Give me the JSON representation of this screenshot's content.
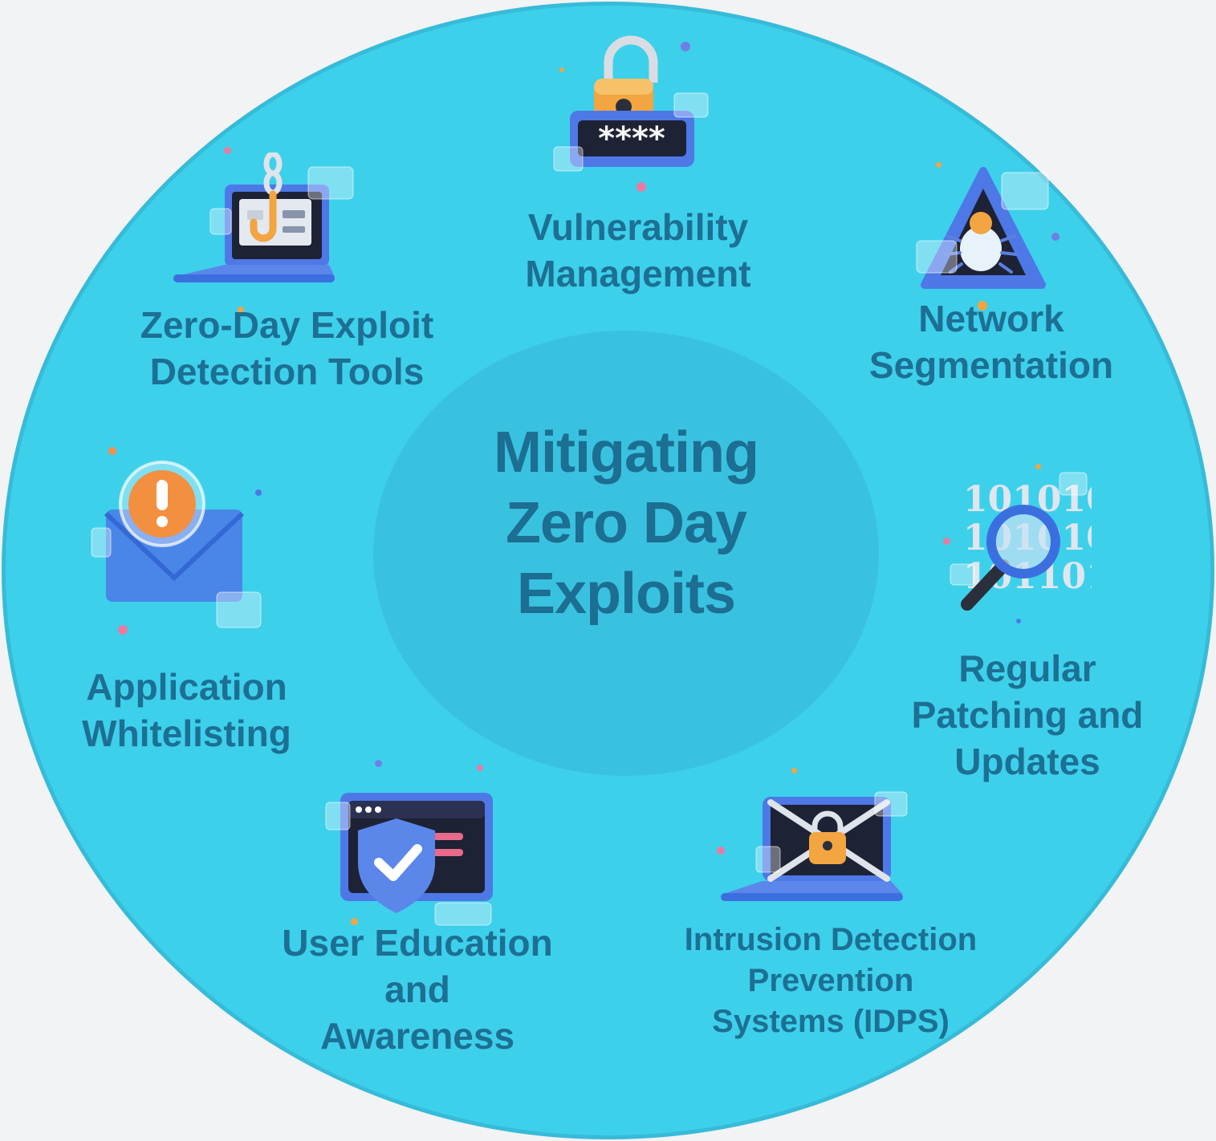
{
  "center": {
    "lines": [
      "Mitigating",
      "Zero Day",
      "Exploits"
    ]
  },
  "items": [
    {
      "id": "vulnerability-management",
      "lines": [
        "Vulnerability",
        "Management"
      ],
      "icon": "padlock-password-icon"
    },
    {
      "id": "network-segmentation",
      "lines": [
        "Network",
        "Segmentation"
      ],
      "icon": "warning-bug-icon"
    },
    {
      "id": "regular-patching",
      "lines": [
        "Regular",
        "Patching and",
        "Updates"
      ],
      "icon": "binary-magnifier-icon"
    },
    {
      "id": "idps",
      "lines": [
        "Intrusion Detection",
        "Prevention",
        "Systems (IDPS)"
      ],
      "icon": "chained-laptop-icon"
    },
    {
      "id": "user-education",
      "lines": [
        "User Education",
        "and",
        "Awareness"
      ],
      "icon": "shield-check-icon"
    },
    {
      "id": "application-whitelisting",
      "lines": [
        "Application",
        "Whitelisting"
      ],
      "icon": "alert-mail-icon"
    },
    {
      "id": "zero-day-detection",
      "lines": [
        "Zero-Day Exploit",
        "Detection Tools"
      ],
      "icon": "phishing-laptop-icon"
    }
  ],
  "colors": {
    "background": "#f2f3f5",
    "outer_circle": "#3dd0eb",
    "inner_circle": "#39c2e0",
    "text": "#1d6f94"
  }
}
